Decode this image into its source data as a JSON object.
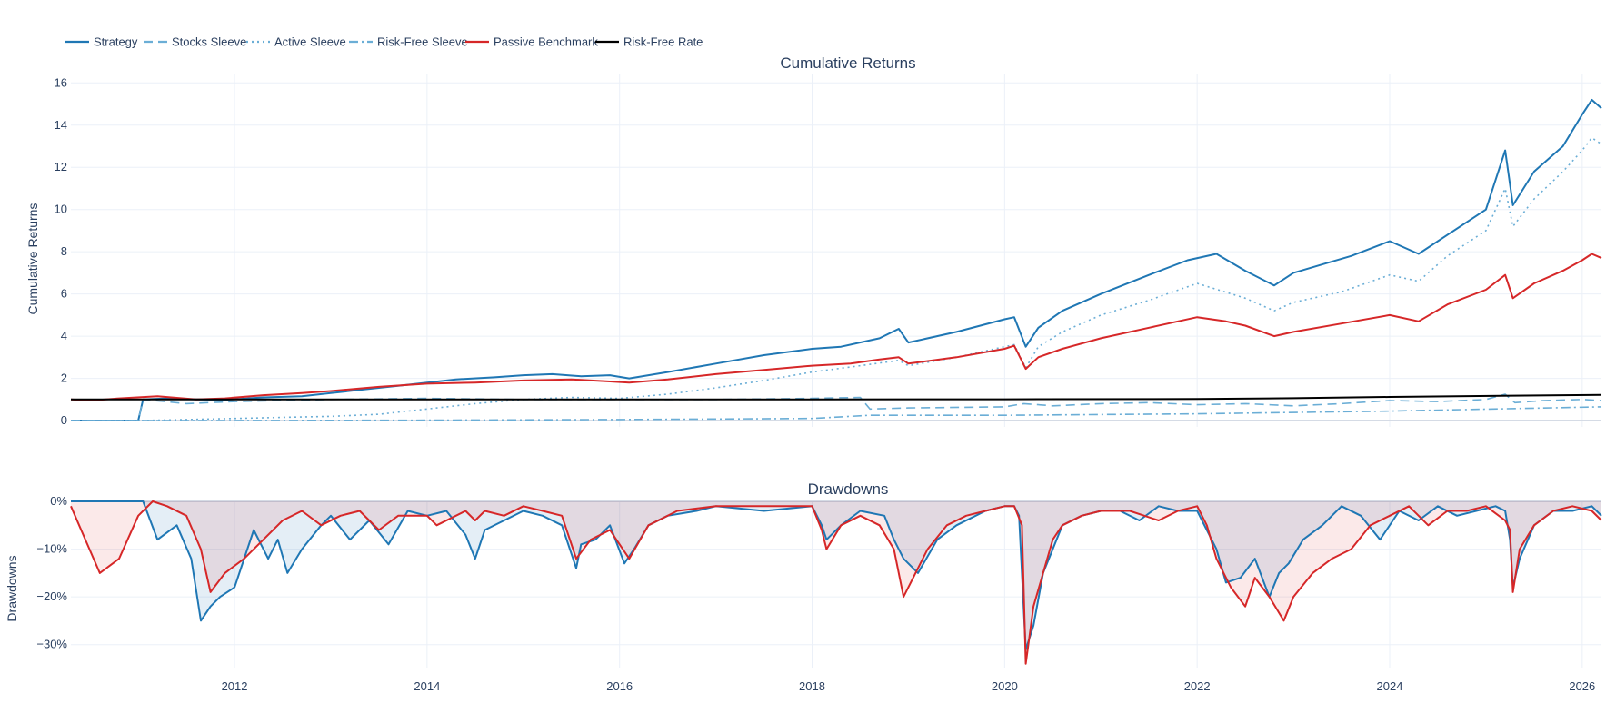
{
  "chart_data": [
    {
      "type": "line",
      "title": "Cumulative Returns",
      "xlabel": "",
      "ylabel": "Cumulative Returns",
      "ylim": [
        -0.3,
        16.4
      ],
      "xlim": [
        2010.3,
        2026.2
      ],
      "yticks": [
        0,
        2,
        4,
        6,
        8,
        10,
        12,
        14,
        16
      ],
      "ytick_labels": [
        "0",
        "2",
        "4",
        "6",
        "8",
        "10",
        "12",
        "14",
        "16"
      ],
      "xticks": [
        2012,
        2014,
        2016,
        2018,
        2020,
        2022,
        2024,
        2026
      ],
      "xtick_labels": [
        "2012",
        "2014",
        "2016",
        "2018",
        "2020",
        "2022",
        "2024",
        "2026"
      ],
      "legend_position": "top-left",
      "series": [
        {
          "name": "Strategy",
          "color": "#1f77b4",
          "dash": "solid",
          "x": [
            2010.3,
            2010.65,
            2010.7,
            2011.0,
            2011.05,
            2011.3,
            2011.6,
            2011.9,
            2012.3,
            2012.7,
            2013.0,
            2013.3,
            2013.7,
            2014.0,
            2014.3,
            2014.7,
            2015.0,
            2015.3,
            2015.6,
            2015.9,
            2016.1,
            2016.5,
            2017.0,
            2017.5,
            2018.0,
            2018.3,
            2018.7,
            2018.9,
            2019.0,
            2019.5,
            2020.0,
            2020.1,
            2020.22,
            2020.35,
            2020.6,
            2021.0,
            2021.5,
            2021.9,
            2022.2,
            2022.5,
            2022.8,
            2023.0,
            2023.3,
            2023.6,
            2024.0,
            2024.3,
            2024.6,
            2025.0,
            2025.2,
            2025.28,
            2025.5,
            2025.8,
            2026.0,
            2026.1,
            2026.2
          ],
          "y": [
            0,
            0,
            0,
            0,
            1.0,
            1.05,
            1.0,
            0.98,
            1.1,
            1.15,
            1.3,
            1.45,
            1.65,
            1.8,
            1.95,
            2.05,
            2.15,
            2.2,
            2.1,
            2.15,
            2.0,
            2.3,
            2.7,
            3.1,
            3.4,
            3.5,
            3.9,
            4.35,
            3.7,
            4.2,
            4.8,
            4.9,
            3.5,
            4.4,
            5.2,
            6.0,
            6.9,
            7.6,
            7.9,
            7.1,
            6.4,
            7.0,
            7.4,
            7.8,
            8.5,
            7.9,
            8.8,
            10.0,
            12.8,
            10.2,
            11.8,
            13.0,
            14.5,
            15.2,
            14.8
          ]
        },
        {
          "name": "Stocks Sleeve",
          "color": "#6baed6",
          "dash": "dashed",
          "x": [
            2010.3,
            2011.0,
            2011.05,
            2011.5,
            2012.0,
            2013.0,
            2014.0,
            2015.0,
            2016.0,
            2017.0,
            2018.0,
            2018.5,
            2018.6,
            2019.0,
            2020.0,
            2020.2,
            2020.5,
            2021.0,
            2021.5,
            2022.0,
            2022.5,
            2023.0,
            2023.5,
            2024.0,
            2024.5,
            2025.0,
            2025.2,
            2025.3,
            2025.6,
            2026.0,
            2026.2
          ],
          "y": [
            0,
            0,
            1.0,
            0.8,
            0.9,
            1.0,
            1.05,
            1.0,
            1.0,
            1.0,
            1.05,
            1.1,
            0.55,
            0.6,
            0.65,
            0.8,
            0.7,
            0.8,
            0.85,
            0.75,
            0.8,
            0.7,
            0.8,
            0.95,
            0.9,
            1.0,
            1.25,
            0.85,
            0.95,
            1.0,
            0.95
          ]
        },
        {
          "name": "Active Sleeve",
          "color": "#6baed6",
          "dash": "dotted",
          "x": [
            2010.3,
            2011.0,
            2011.5,
            2012.0,
            2012.5,
            2013.0,
            2013.5,
            2014.0,
            2014.5,
            2015.0,
            2015.5,
            2016.0,
            2016.5,
            2017.0,
            2017.5,
            2018.0,
            2018.5,
            2018.9,
            2019.0,
            2019.5,
            2020.0,
            2020.1,
            2020.22,
            2020.35,
            2020.6,
            2021.0,
            2021.5,
            2022.0,
            2022.5,
            2022.8,
            2023.0,
            2023.5,
            2024.0,
            2024.3,
            2024.6,
            2025.0,
            2025.2,
            2025.28,
            2025.5,
            2025.8,
            2026.0,
            2026.1,
            2026.2
          ],
          "y": [
            0,
            0,
            0.05,
            0.1,
            0.15,
            0.2,
            0.3,
            0.55,
            0.8,
            1.0,
            1.1,
            1.05,
            1.25,
            1.55,
            1.9,
            2.3,
            2.6,
            2.85,
            2.6,
            3.0,
            3.5,
            3.6,
            2.5,
            3.5,
            4.2,
            5.0,
            5.7,
            6.5,
            5.8,
            5.2,
            5.6,
            6.1,
            6.9,
            6.6,
            7.8,
            9.0,
            11.0,
            9.2,
            10.5,
            11.8,
            12.8,
            13.4,
            13.1
          ]
        },
        {
          "name": "Risk-Free Sleeve",
          "color": "#6baed6",
          "dash": "dashdot",
          "x": [
            2010.3,
            2012.0,
            2014.0,
            2016.0,
            2018.0,
            2018.6,
            2020.0,
            2022.0,
            2024.0,
            2026.2
          ],
          "y": [
            0,
            0,
            0.02,
            0.05,
            0.1,
            0.25,
            0.25,
            0.32,
            0.45,
            0.65
          ]
        },
        {
          "name": "Passive Benchmark",
          "color": "#d62728",
          "dash": "solid",
          "x": [
            2010.3,
            2010.5,
            2010.8,
            2011.2,
            2011.6,
            2011.9,
            2012.3,
            2012.7,
            2013.0,
            2013.5,
            2014.0,
            2014.5,
            2015.0,
            2015.5,
            2015.9,
            2016.1,
            2016.5,
            2017.0,
            2017.5,
            2018.0,
            2018.4,
            2018.7,
            2018.9,
            2019.0,
            2019.5,
            2020.0,
            2020.1,
            2020.22,
            2020.35,
            2020.6,
            2021.0,
            2021.5,
            2022.0,
            2022.3,
            2022.5,
            2022.8,
            2023.0,
            2023.5,
            2024.0,
            2024.3,
            2024.6,
            2025.0,
            2025.2,
            2025.28,
            2025.5,
            2025.8,
            2026.0,
            2026.1,
            2026.2
          ],
          "y": [
            1.0,
            0.95,
            1.05,
            1.15,
            1.0,
            1.05,
            1.2,
            1.3,
            1.4,
            1.6,
            1.75,
            1.8,
            1.9,
            1.95,
            1.85,
            1.8,
            1.95,
            2.2,
            2.4,
            2.6,
            2.7,
            2.9,
            3.0,
            2.7,
            3.0,
            3.4,
            3.55,
            2.45,
            3.0,
            3.4,
            3.9,
            4.4,
            4.9,
            4.7,
            4.5,
            4.0,
            4.2,
            4.6,
            5.0,
            4.7,
            5.5,
            6.2,
            6.9,
            5.8,
            6.5,
            7.1,
            7.6,
            7.9,
            7.7
          ]
        },
        {
          "name": "Risk-Free Rate",
          "color": "#000000",
          "dash": "solid",
          "x": [
            2010.3,
            2016.0,
            2020.0,
            2022.0,
            2023.0,
            2024.0,
            2026.2
          ],
          "y": [
            1.0,
            1.0,
            1.01,
            1.02,
            1.06,
            1.12,
            1.22
          ]
        }
      ]
    },
    {
      "type": "area",
      "title": "Drawdowns",
      "xlabel": "",
      "ylabel": "Drawdowns",
      "ylim": [
        -0.35,
        0.0
      ],
      "xlim": [
        2010.3,
        2026.2
      ],
      "yticks": [
        0,
        -0.1,
        -0.2,
        -0.3
      ],
      "ytick_labels": [
        "0%",
        "−10%",
        "−20%",
        "−30%"
      ],
      "xticks": [
        2012,
        2014,
        2016,
        2018,
        2020,
        2022,
        2024,
        2026
      ],
      "xtick_labels": [
        "2012",
        "2014",
        "2016",
        "2018",
        "2020",
        "2022",
        "2024",
        "2026"
      ],
      "series": [
        {
          "name": "Strategy",
          "color": "#1f77b4",
          "fill": "rgba(31,119,180,0.12)",
          "x": [
            2010.3,
            2011.05,
            2011.2,
            2011.4,
            2011.55,
            2011.65,
            2011.75,
            2011.85,
            2012.0,
            2012.2,
            2012.35,
            2012.45,
            2012.55,
            2012.7,
            2012.9,
            2013.0,
            2013.2,
            2013.4,
            2013.6,
            2013.8,
            2014.0,
            2014.2,
            2014.4,
            2014.5,
            2014.6,
            2014.8,
            2015.0,
            2015.2,
            2015.4,
            2015.55,
            2015.6,
            2015.75,
            2015.9,
            2016.05,
            2016.15,
            2016.3,
            2016.5,
            2016.8,
            2017.0,
            2017.5,
            2018.0,
            2018.1,
            2018.15,
            2018.3,
            2018.5,
            2018.75,
            2018.85,
            2018.95,
            2019.1,
            2019.3,
            2019.5,
            2019.8,
            2020.0,
            2020.1,
            2020.15,
            2020.22,
            2020.3,
            2020.4,
            2020.5,
            2020.6,
            2020.8,
            2021.0,
            2021.2,
            2021.4,
            2021.6,
            2021.8,
            2022.0,
            2022.1,
            2022.2,
            2022.3,
            2022.45,
            2022.6,
            2022.75,
            2022.85,
            2022.95,
            2023.1,
            2023.3,
            2023.5,
            2023.7,
            2023.9,
            2024.1,
            2024.3,
            2024.5,
            2024.7,
            2024.9,
            2025.1,
            2025.2,
            2025.25,
            2025.28,
            2025.35,
            2025.5,
            2025.7,
            2025.9,
            2026.1,
            2026.2
          ],
          "y": [
            0,
            0,
            -0.08,
            -0.05,
            -0.12,
            -0.25,
            -0.22,
            -0.2,
            -0.18,
            -0.06,
            -0.12,
            -0.08,
            -0.15,
            -0.1,
            -0.05,
            -0.03,
            -0.08,
            -0.04,
            -0.09,
            -0.02,
            -0.03,
            -0.02,
            -0.07,
            -0.12,
            -0.06,
            -0.04,
            -0.02,
            -0.03,
            -0.05,
            -0.14,
            -0.09,
            -0.08,
            -0.05,
            -0.13,
            -0.1,
            -0.05,
            -0.03,
            -0.02,
            -0.01,
            -0.02,
            -0.01,
            -0.05,
            -0.08,
            -0.05,
            -0.02,
            -0.03,
            -0.08,
            -0.12,
            -0.15,
            -0.08,
            -0.05,
            -0.02,
            -0.01,
            -0.01,
            -0.03,
            -0.31,
            -0.26,
            -0.15,
            -0.1,
            -0.05,
            -0.03,
            -0.02,
            -0.02,
            -0.04,
            -0.01,
            -0.02,
            -0.02,
            -0.06,
            -0.1,
            -0.17,
            -0.16,
            -0.12,
            -0.2,
            -0.15,
            -0.13,
            -0.08,
            -0.05,
            -0.01,
            -0.03,
            -0.08,
            -0.02,
            -0.04,
            -0.01,
            -0.03,
            -0.02,
            -0.01,
            -0.02,
            -0.08,
            -0.18,
            -0.12,
            -0.05,
            -0.02,
            -0.02,
            -0.01,
            -0.03
          ]
        },
        {
          "name": "Passive Benchmark",
          "color": "#d62728",
          "fill": "rgba(214,39,40,0.10)",
          "x": [
            2010.3,
            2010.45,
            2010.6,
            2010.8,
            2011.0,
            2011.15,
            2011.3,
            2011.5,
            2011.65,
            2011.75,
            2011.9,
            2012.1,
            2012.3,
            2012.5,
            2012.7,
            2012.9,
            2013.1,
            2013.3,
            2013.5,
            2013.7,
            2014.0,
            2014.1,
            2014.4,
            2014.5,
            2014.6,
            2014.8,
            2015.0,
            2015.2,
            2015.4,
            2015.55,
            2015.7,
            2015.9,
            2016.0,
            2016.1,
            2016.3,
            2016.6,
            2017.0,
            2017.5,
            2018.0,
            2018.1,
            2018.15,
            2018.3,
            2018.5,
            2018.7,
            2018.85,
            2018.95,
            2019.0,
            2019.2,
            2019.4,
            2019.6,
            2019.8,
            2020.0,
            2020.1,
            2020.18,
            2020.22,
            2020.3,
            2020.4,
            2020.5,
            2020.6,
            2020.8,
            2021.0,
            2021.3,
            2021.6,
            2021.8,
            2022.0,
            2022.1,
            2022.2,
            2022.35,
            2022.5,
            2022.6,
            2022.75,
            2022.9,
            2023.0,
            2023.2,
            2023.4,
            2023.6,
            2023.8,
            2024.0,
            2024.2,
            2024.4,
            2024.6,
            2024.8,
            2025.0,
            2025.2,
            2025.25,
            2025.28,
            2025.35,
            2025.5,
            2025.7,
            2025.9,
            2026.1,
            2026.2
          ],
          "y": [
            -0.01,
            -0.08,
            -0.15,
            -0.12,
            -0.03,
            0,
            -0.01,
            -0.03,
            -0.1,
            -0.19,
            -0.15,
            -0.12,
            -0.08,
            -0.04,
            -0.02,
            -0.05,
            -0.03,
            -0.02,
            -0.06,
            -0.03,
            -0.03,
            -0.05,
            -0.02,
            -0.04,
            -0.02,
            -0.03,
            -0.01,
            -0.02,
            -0.03,
            -0.12,
            -0.08,
            -0.06,
            -0.09,
            -0.12,
            -0.05,
            -0.02,
            -0.01,
            -0.01,
            -0.01,
            -0.06,
            -0.1,
            -0.05,
            -0.03,
            -0.05,
            -0.1,
            -0.2,
            -0.18,
            -0.1,
            -0.05,
            -0.03,
            -0.02,
            -0.01,
            -0.01,
            -0.05,
            -0.34,
            -0.22,
            -0.15,
            -0.08,
            -0.05,
            -0.03,
            -0.02,
            -0.02,
            -0.04,
            -0.02,
            -0.01,
            -0.05,
            -0.12,
            -0.18,
            -0.22,
            -0.16,
            -0.2,
            -0.25,
            -0.2,
            -0.15,
            -0.12,
            -0.1,
            -0.05,
            -0.03,
            -0.01,
            -0.05,
            -0.02,
            -0.02,
            -0.01,
            -0.04,
            -0.06,
            -0.19,
            -0.1,
            -0.05,
            -0.02,
            -0.01,
            -0.02,
            -0.04
          ]
        }
      ]
    }
  ]
}
